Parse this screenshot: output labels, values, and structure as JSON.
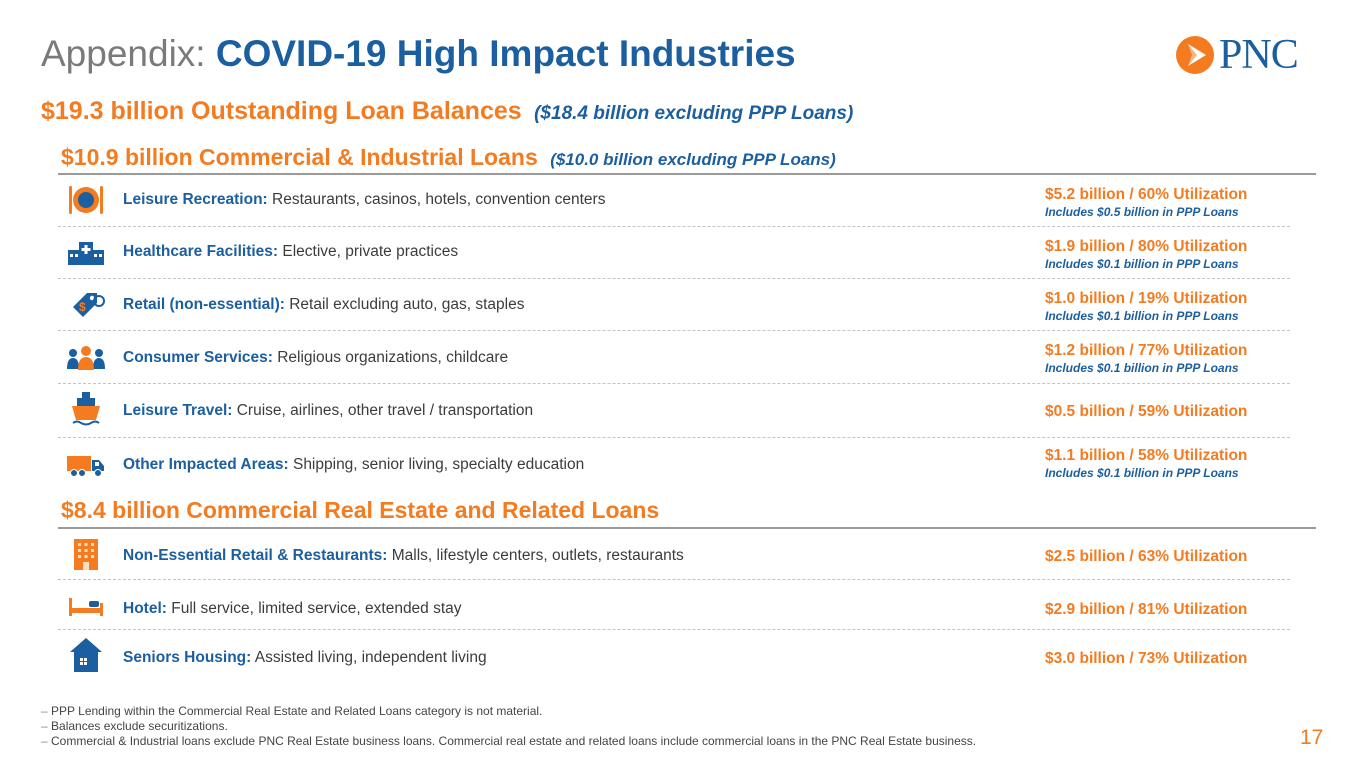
{
  "title": {
    "prefix": "Appendix:",
    "main": "COVID-19 High Impact Industries"
  },
  "logo": {
    "text": "PNC",
    "icon": "pnc-logo-mark",
    "registered": "®"
  },
  "subtitle": {
    "main": "$19.3 billion Outstanding Loan Balances",
    "note": "($18.4 billion excluding PPP Loans)"
  },
  "ci_section": {
    "title": "$10.9 billion Commercial & Industrial Loans",
    "note": "($10.0 billion excluding PPP Loans)",
    "rows": [
      {
        "icon": "plate-cutlery-icon",
        "category": "Leisure Recreation:",
        "desc": " Restaurants, casinos, hotels, convention centers",
        "value": "$5.2 billion / 60% Utilization",
        "ppp": "Includes $0.5 billion in PPP Loans"
      },
      {
        "icon": "hospital-icon",
        "category": "Healthcare Facilities:",
        "desc": " Elective, private practices",
        "value": "$1.9 billion / 80% Utilization",
        "ppp": "Includes $0.1 billion in PPP Loans"
      },
      {
        "icon": "price-tag-icon",
        "category": "Retail (non-essential):",
        "desc": " Retail excluding auto, gas, staples",
        "value": "$1.0 billion / 19% Utilization",
        "ppp": "Includes $0.1 billion in PPP Loans"
      },
      {
        "icon": "people-group-icon",
        "category": "Consumer Services:",
        "desc": " Religious organizations, childcare",
        "value": "$1.2 billion / 77% Utilization",
        "ppp": "Includes $0.1 billion in PPP Loans"
      },
      {
        "icon": "cruise-ship-icon",
        "category": "Leisure Travel:",
        "desc": " Cruise, airlines, other travel / transportation",
        "value": "$0.5 billion / 59% Utilization",
        "ppp": ""
      },
      {
        "icon": "delivery-truck-icon",
        "category": "Other Impacted Areas:",
        "desc": " Shipping, senior living, specialty education",
        "value": "$1.1 billion / 58% Utilization",
        "ppp": "Includes $0.1 billion in PPP Loans"
      }
    ]
  },
  "cre_section": {
    "title": "$8.4 billion Commercial Real Estate and Related Loans",
    "rows": [
      {
        "icon": "office-building-icon",
        "category": "Non-Essential Retail & Restaurants:",
        "desc": " Malls, lifestyle centers, outlets, restaurants",
        "value": "$2.5 billion / 63% Utilization"
      },
      {
        "icon": "hotel-bed-icon",
        "category": "Hotel:",
        "desc": " Full service, limited service, extended stay",
        "value": "$2.9 billion / 81% Utilization"
      },
      {
        "icon": "house-icon",
        "category": "Seniors Housing:",
        "desc": " Assisted living, independent living",
        "value": "$3.0 billion / 73% Utilization"
      }
    ]
  },
  "footnotes": [
    "PPP Lending within the Commercial Real Estate and Related Loans category is not material.",
    "Balances exclude securitizations.",
    "Commercial & Industrial loans exclude PNC Real Estate business loans. Commercial real estate and related loans include commercial loans in the PNC Real Estate business."
  ],
  "page_number": "17",
  "colors": {
    "orange": "#f47b20",
    "blue": "#1c5fa0",
    "gray": "#7a7a7a"
  }
}
